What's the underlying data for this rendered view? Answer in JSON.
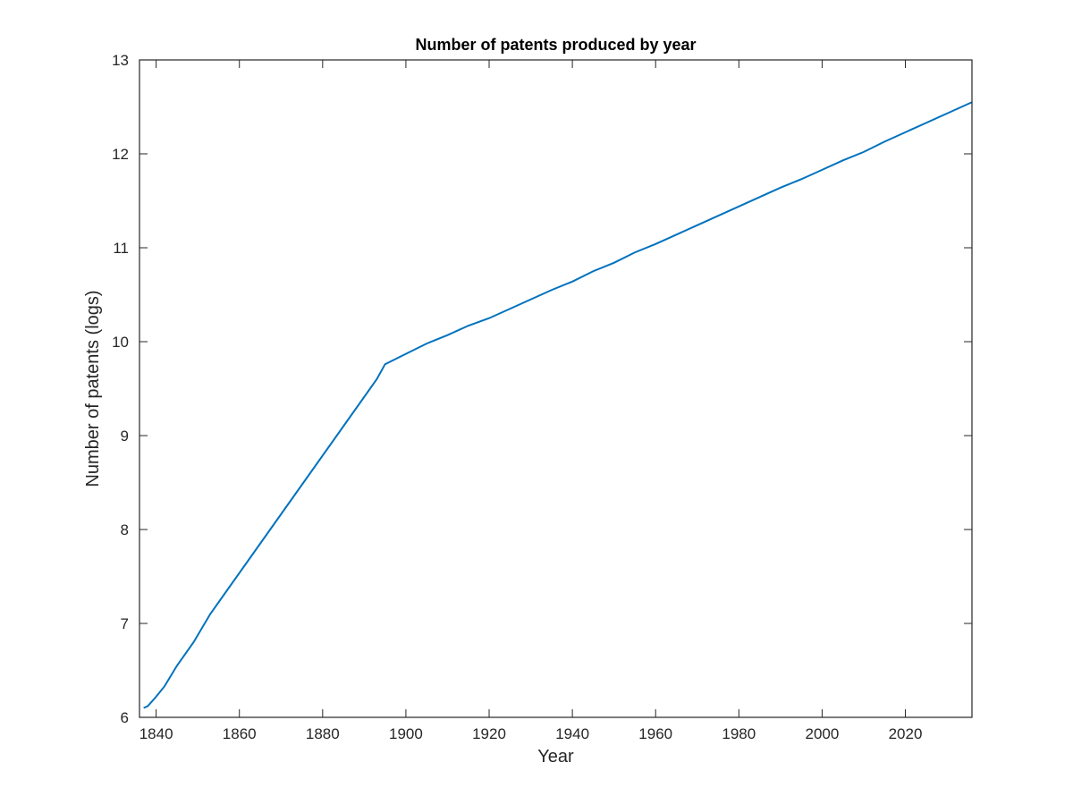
{
  "chart_data": {
    "type": "line",
    "title": "Number of patents produced by year",
    "xlabel": "Year",
    "ylabel": "Number of patents (logs)",
    "xlim": [
      1836,
      2036
    ],
    "ylim": [
      6,
      13
    ],
    "xticks": [
      1840,
      1860,
      1880,
      1900,
      1920,
      1940,
      1960,
      1980,
      2000,
      2020
    ],
    "yticks": [
      6,
      7,
      8,
      9,
      10,
      11,
      12,
      13
    ],
    "xtick_labels": [
      "1840",
      "1860",
      "1880",
      "1900",
      "1920",
      "1940",
      "1960",
      "1980",
      "2000",
      "2020"
    ],
    "ytick_labels": [
      "6",
      "7",
      "8",
      "9",
      "10",
      "11",
      "12",
      "13"
    ],
    "grid": false,
    "series": [
      {
        "color": "#0072BD",
        "x": [
          1837,
          1838,
          1840,
          1842,
          1845,
          1849,
          1853,
          1857,
          1861,
          1865,
          1869,
          1873,
          1877,
          1881,
          1885,
          1889,
          1893,
          1895,
          1900,
          1905,
          1910,
          1915,
          1920,
          1925,
          1930,
          1935,
          1940,
          1945,
          1950,
          1955,
          1960,
          1965,
          1970,
          1975,
          1980,
          1985,
          1990,
          1995,
          2000,
          2005,
          2010,
          2015,
          2020,
          2025,
          2030,
          2036
        ],
        "y": [
          6.1,
          6.12,
          6.22,
          6.33,
          6.55,
          6.8,
          7.1,
          7.35,
          7.6,
          7.85,
          8.1,
          8.35,
          8.6,
          8.85,
          9.1,
          9.35,
          9.6,
          9.76,
          9.87,
          9.98,
          10.07,
          10.17,
          10.25,
          10.35,
          10.45,
          10.55,
          10.64,
          10.75,
          10.84,
          10.95,
          11.04,
          11.14,
          11.24,
          11.34,
          11.44,
          11.54,
          11.64,
          11.73,
          11.83,
          11.93,
          12.02,
          12.13,
          12.23,
          12.33,
          12.43,
          12.55
        ]
      }
    ]
  }
}
